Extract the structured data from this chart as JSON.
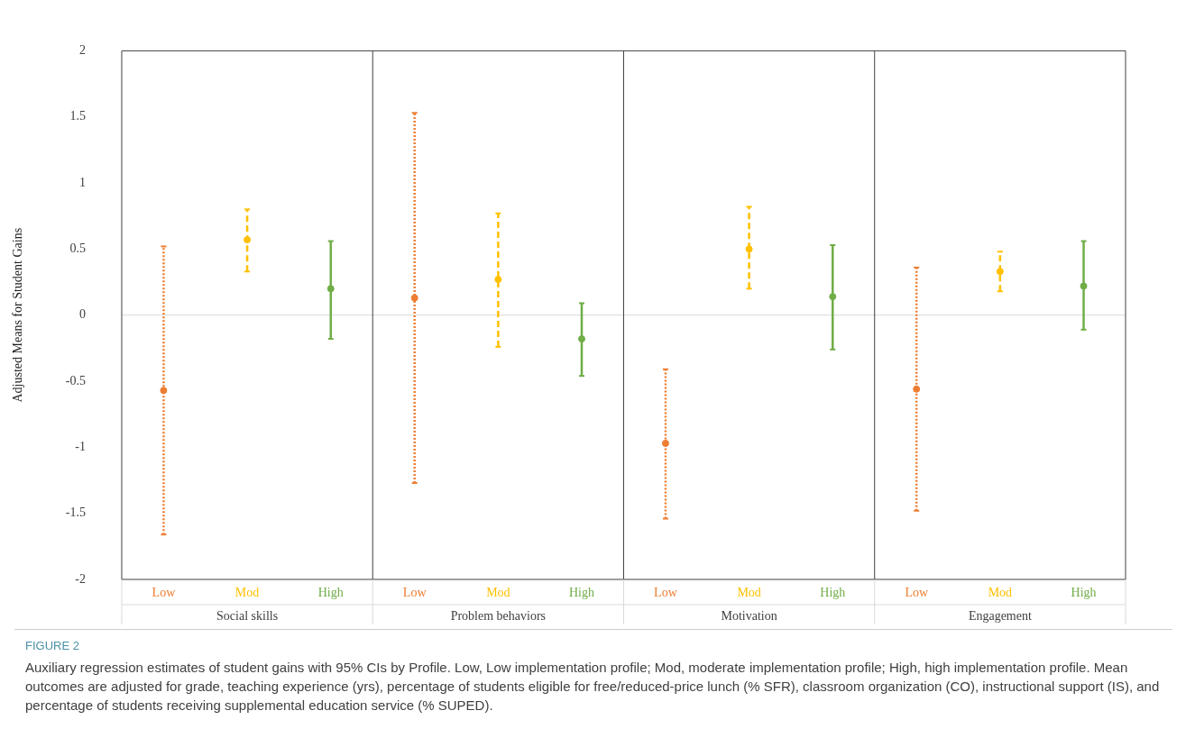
{
  "chart_data": {
    "type": "scatter",
    "title": "FIGURE 2",
    "ylabel": "Adjusted Means for Student Gains",
    "categories": [
      "Social skills",
      "Problem behaviors",
      "Motivation",
      "Engagement"
    ],
    "series": [
      {
        "name": "Low",
        "color": "#ed7d31",
        "line_style": "dotted",
        "values": [
          -0.57,
          0.13,
          -0.97,
          -0.56
        ],
        "errors": [
          [
            -1.66,
            0.52
          ],
          [
            -1.27,
            1.53
          ],
          [
            -1.54,
            -0.41
          ],
          [
            -1.48,
            0.36
          ]
        ]
      },
      {
        "name": "Mod",
        "color": "#ffc000",
        "line_style": "dashed",
        "values": [
          0.57,
          0.27,
          0.5,
          0.33
        ],
        "errors": [
          [
            0.33,
            0.8
          ],
          [
            -0.24,
            0.77
          ],
          [
            0.2,
            0.82
          ],
          [
            0.18,
            0.48
          ]
        ]
      },
      {
        "name": "High",
        "color": "#70ad47",
        "line_style": "solid",
        "values": [
          0.2,
          -0.18,
          0.14,
          0.22
        ],
        "errors": [
          [
            -0.18,
            0.56
          ],
          [
            -0.46,
            0.09
          ],
          [
            -0.26,
            0.53
          ],
          [
            -0.11,
            0.56
          ]
        ]
      }
    ],
    "ylim": [
      -2,
      2
    ],
    "yticks": [
      -2,
      -1.5,
      -1,
      -0.5,
      0,
      0.5,
      1,
      1.5,
      2
    ],
    "ref_lines": [
      {
        "axis": "y",
        "value": 0,
        "color": "#d9d9d9"
      }
    ],
    "grid": false,
    "legend": false,
    "marker": "circle",
    "annotations": [
      "Auxiliary regression estimates of student gains with 95% CIs by Profile. Low, Low implementation profile; Mod, moderate implementation profile; High, high implementation profile. Mean outcomes are adjusted for grade, teaching experience (yrs), percentage of students eligible for free/reduced-price lunch (% SFR), classroom organization (CO), instructional support (IS), and percentage of students receiving supplemental education service (% SUPED)."
    ]
  }
}
